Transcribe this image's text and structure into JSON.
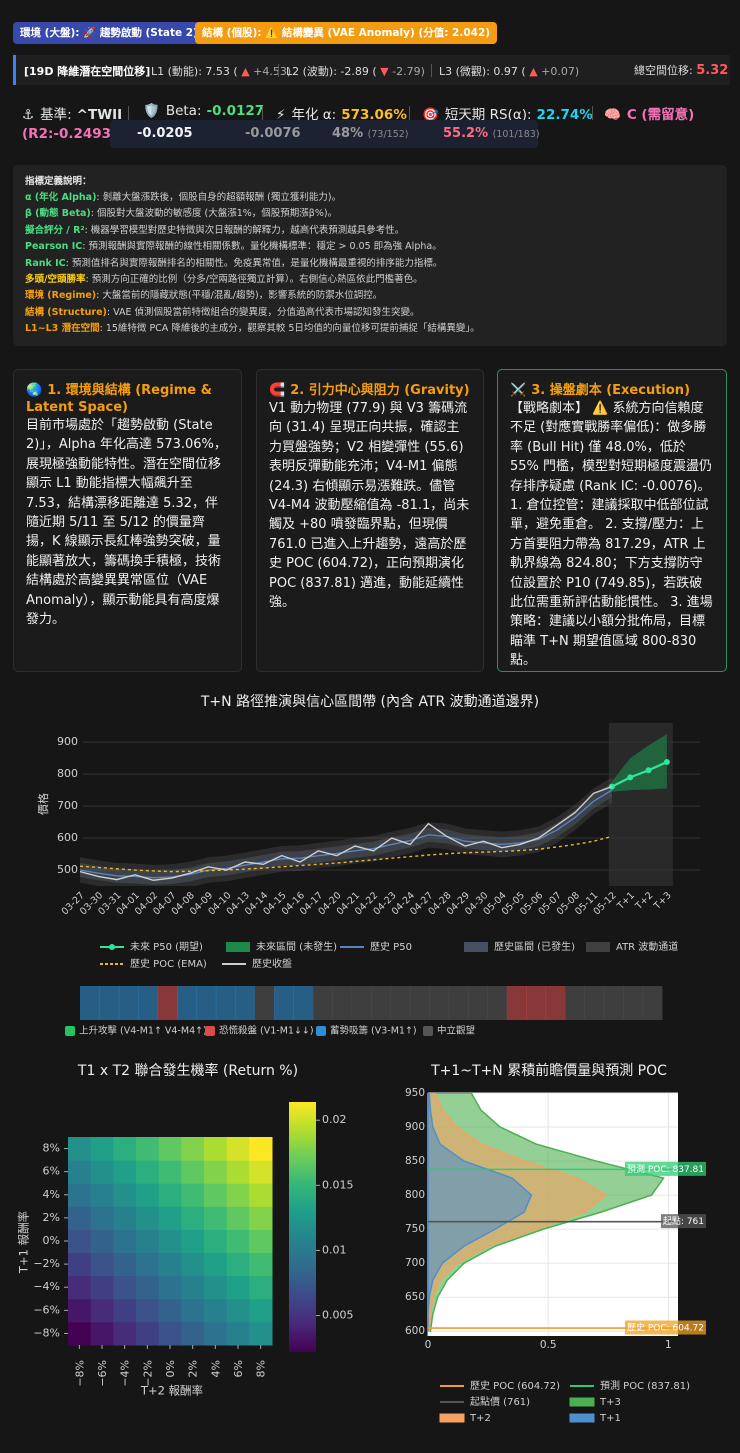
{
  "badges": [
    "環境 (大盤): 🚀 趨勢啟動 (State 2)",
    "結構 (個股): ⚠️ 結構變異 (VAE Anomaly) (分值: 2.042)"
  ],
  "latent": {
    "title": "[19D 降維潛在空間位移]",
    "items": [
      {
        "label": "L1 (動能): 7.53 (",
        "arrow": "▲",
        "delta": "+4.53)"
      },
      {
        "label": "L2 (波動): -2.89 (",
        "arrow": "▼",
        "delta": "-2.79)"
      },
      {
        "label": "L3 (微觀): 0.97 (",
        "arrow": "▲",
        "delta": "+0.07)"
      }
    ],
    "total": {
      "label": "總空間位移:",
      "value": "5.32"
    }
  },
  "metrics": {
    "items": [
      {
        "icon": "⚓",
        "label": "基準:",
        "value": "^TWII",
        "color": "#e5e5e5"
      },
      {
        "icon": "🛡️",
        "label": "Beta:",
        "value": "-0.0127",
        "color": "#4ade80"
      },
      {
        "icon": "⚡",
        "label": "年化 α:",
        "value": "573.06%",
        "color": "#fbbf24"
      },
      {
        "icon": "🎯",
        "label": "短天期 RS(α):",
        "value": "22.74%",
        "color": "#22d3ee"
      },
      {
        "icon": "🧠",
        "value": "C (需留意)",
        "color": "#f472b6"
      }
    ],
    "r2": "(R2:-0.2493)",
    "stats": [
      {
        "main": "-0.0205",
        "color": "#f2f2f2"
      },
      {
        "main": "-0.0076",
        "color": "#9a9a9a"
      },
      {
        "main": "48%",
        "sub": "(73/152)",
        "color": "#9a9a9a"
      },
      {
        "main": "55.2%",
        "sub": "(101/183)",
        "color": "#ff6b81"
      }
    ]
  },
  "definitions": {
    "heading": "指標定義說明：",
    "items": [
      {
        "term": "α (年化 Alpha)",
        "desc": ": 剝離大盤漲跌後，個股自身的超額報酬 (獨立獲利能力)。",
        "color": "#4ade80"
      },
      {
        "term": "β (動態 Beta)",
        "desc": ": 個股對大盤波動的敏感度 (大盤漲1%，個股預期漲β%)。",
        "color": "#4ade80"
      },
      {
        "term": "擬合評分 / R²",
        "desc": ": 機器學習模型對歷史特徵與次日報酬的解釋力，越高代表預測越具參考性。",
        "color": "#4ade80"
      },
      {
        "term": "Pearson IC",
        "desc": ": 預測報酬與實際報酬的線性相關係數。量化機構標準：穩定 > 0.05 即為強 Alpha。",
        "color": "#4ade80"
      },
      {
        "term": "Rank IC",
        "desc": ": 預測值排名與實際報酬排名的相關性。免疫異常值，是量化機構最重視的排序能力指標。",
        "color": "#4ade80"
      },
      {
        "term": "多頭/空頭勝率",
        "desc": ": 預測方向正確的比例（分多/空兩路徑獨立計算）。右側信心熱區依此門檻著色。",
        "color": "#facc15"
      },
      {
        "term": "環境 (Regime)",
        "desc": ": 大盤當前的隱藏狀態(平穩/混亂/趨勢)，影響系統的防禦水位調控。",
        "color": "#f59e0b"
      },
      {
        "term": "結構 (Structure)",
        "desc": ": VAE 偵測個股當前特徵組合的變異度，分值過高代表市場認知發生突變。",
        "color": "#f59e0b"
      },
      {
        "term": "L1~L3 潛在空間",
        "desc": ": 15維特徵 PCA 降維後的主成分，觀察其較 5日均值的向量位移可提前捕捉「結構異變」。",
        "color": "#f59e0b"
      }
    ]
  },
  "cards": [
    {
      "icon": "🌏",
      "title": "1. 環境與結構 (Regime & Latent Space)",
      "body": "目前市場處於「趨勢啟動 (State 2)」，Alpha 年化高達 573.06%，展現極強動能特性。潛在空間位移顯示 L1 動能指標大幅飆升至 7.53，結構漂移距離達 5.32，伴隨近期 5/11 至 5/12 的價量齊揚，K 線顯示長紅棒強勢突破，量能顯著放大，籌碼換手積極，技術結構處於高變異異常區位（VAE Anomaly），顯示動能具有高度爆發力。"
    },
    {
      "icon": "🧲",
      "title": "2. 引力中心與阻力 (Gravity)",
      "body": "V1 動力物理 (77.9) 與 V3 籌碼流向 (31.4) 呈現正向共振，確認主力買盤強勢；V2 相變彈性 (55.6) 表明反彈動能充沛；V4-M1 偏態 (24.3) 右傾顯示易漲難跌。儘管 V4-M4 波動壓縮值為 -81.1，尚未觸及 +80 噴發臨界點，但現價 761.0 已進入上升趨勢，遠高於歷史 POC (604.72)，正向預期演化 POC (837.81) 邁進，動能延續性強。"
    },
    {
      "icon": "⚔️",
      "title": "3. 操盤劇本 (Execution)",
      "body": "【戰略劇本】 ⚠️ 系統方向信賴度不足 (對應實戰勝率偏低)：做多勝率 (Bull Hit) 僅 48.0%，低於 55% 門檻，模型對短期極度震盪仍存排序疑慮 (Rank IC: -0.0076)。 1. 倉位控管：建議採取中低部位試單，避免重倉。 2. 支撐/壓力：上方首要阻力帶為 817.29，ATR 上軌界線為 824.80；下方支撐防守位設置於 P10 (749.85)，若跌破此位需重新評估動能慣性。 3. 進場策略：建議以小額分批佈局，目標瞄準 T+N 期望值區域 800-830 點。"
    }
  ],
  "chart_data": [
    {
      "type": "line",
      "title": "T+N 路徑推演與信心區間帶 (內含 ATR 波動通道邊界)",
      "y_label": "價格",
      "categories": [
        "03-27",
        "03-30",
        "03-31",
        "04-01",
        "04-02",
        "04-07",
        "04-08",
        "04-09",
        "04-10",
        "04-13",
        "04-14",
        "04-15",
        "04-16",
        "04-17",
        "04-20",
        "04-21",
        "04-22",
        "04-23",
        "04-24",
        "04-27",
        "04-28",
        "04-29",
        "04-30",
        "05-04",
        "05-05",
        "05-06",
        "05-07",
        "05-08",
        "05-11",
        "05-12",
        "T+1",
        "T+2",
        "T+3"
      ],
      "ylim": [
        450,
        960
      ],
      "yticks": [
        500,
        600,
        700,
        800,
        900
      ],
      "grid": true,
      "series": [
        {
          "name": "未來 P50 (期望)",
          "kind": "line",
          "markers": true,
          "color": "#2ee59d",
          "values": [
            null,
            null,
            null,
            null,
            null,
            null,
            null,
            null,
            null,
            null,
            null,
            null,
            null,
            null,
            null,
            null,
            null,
            null,
            null,
            null,
            null,
            null,
            null,
            null,
            null,
            null,
            null,
            null,
            null,
            761,
            790,
            812,
            838
          ]
        },
        {
          "name": "未來區間 (未發生)",
          "kind": "band",
          "color": "#1d8a4a",
          "opacity": 0.6,
          "lower": [
            null,
            null,
            null,
            null,
            null,
            null,
            null,
            null,
            null,
            null,
            null,
            null,
            null,
            null,
            null,
            null,
            null,
            null,
            null,
            null,
            null,
            null,
            null,
            null,
            null,
            null,
            null,
            null,
            null,
            745,
            750,
            752,
            755
          ],
          "upper": [
            null,
            null,
            null,
            null,
            null,
            null,
            null,
            null,
            null,
            null,
            null,
            null,
            null,
            null,
            null,
            null,
            null,
            null,
            null,
            null,
            null,
            null,
            null,
            null,
            null,
            null,
            null,
            null,
            null,
            777,
            850,
            890,
            925
          ]
        },
        {
          "name": "歷史 P50",
          "kind": "line",
          "color": "#5b82bd",
          "values": [
            500,
            490,
            482,
            480,
            476,
            478,
            486,
            500,
            505,
            515,
            525,
            535,
            537,
            545,
            552,
            560,
            567,
            580,
            592,
            610,
            605,
            590,
            585,
            580,
            585,
            596,
            625,
            665,
            715,
            750,
            null,
            null,
            null
          ]
        },
        {
          "name": "歷史區間 (已發生)",
          "kind": "band",
          "color": "#5a6b85",
          "opacity": 0.35,
          "lower": [
            478,
            468,
            460,
            458,
            454,
            456,
            464,
            478,
            483,
            493,
            503,
            513,
            515,
            523,
            530,
            538,
            545,
            558,
            570,
            588,
            583,
            568,
            563,
            558,
            563,
            574,
            603,
            643,
            693,
            728,
            null,
            null,
            null
          ],
          "upper": [
            522,
            512,
            504,
            502,
            498,
            500,
            508,
            522,
            527,
            537,
            547,
            557,
            559,
            567,
            574,
            582,
            589,
            602,
            614,
            632,
            627,
            612,
            607,
            602,
            607,
            618,
            647,
            687,
            737,
            772,
            null,
            null,
            null
          ]
        },
        {
          "name": "ATR 波動通道",
          "kind": "band",
          "color": "#777777",
          "opacity": 0.22,
          "lower": [
            460,
            450,
            442,
            440,
            436,
            438,
            446,
            460,
            465,
            475,
            485,
            495,
            497,
            505,
            512,
            520,
            527,
            540,
            552,
            570,
            565,
            550,
            545,
            540,
            545,
            556,
            585,
            625,
            675,
            710,
            null,
            null,
            null
          ],
          "upper": [
            540,
            530,
            522,
            520,
            516,
            518,
            526,
            540,
            545,
            555,
            565,
            575,
            577,
            585,
            592,
            600,
            607,
            620,
            632,
            650,
            645,
            630,
            625,
            620,
            625,
            636,
            665,
            705,
            755,
            790,
            null,
            null,
            null
          ]
        },
        {
          "name": "歷史 POC (EMA)",
          "kind": "line",
          "dash": true,
          "color": "#f0b429",
          "values": [
            512,
            508,
            504,
            500,
            497,
            495,
            496,
            498,
            500,
            503,
            506,
            510,
            514,
            518,
            522,
            527,
            532,
            537,
            542,
            547,
            551,
            554,
            556,
            558,
            561,
            565,
            572,
            580,
            590,
            605,
            null,
            null,
            null
          ]
        },
        {
          "name": "歷史收盤",
          "kind": "line",
          "color": "#cfcfcf",
          "values": [
            495,
            480,
            470,
            485,
            468,
            475,
            490,
            510,
            500,
            525,
            518,
            545,
            525,
            560,
            545,
            575,
            560,
            600,
            580,
            645,
            605,
            575,
            590,
            570,
            580,
            600,
            640,
            680,
            740,
            761,
            null,
            null,
            null
          ]
        }
      ],
      "regimes": {
        "names": [
          "上升攻擊 (V4-M1↑ V4-M4↑)",
          "恐慌殺盤 (V1-M1↓↓)",
          "蓄勢吸籌 (V3-M1↑)",
          "中立觀望"
        ],
        "colors": [
          "#22c55e",
          "#dc4a4a",
          "#2a8fd8",
          "#555555"
        ],
        "sequence": [
          2,
          2,
          2,
          2,
          1,
          2,
          2,
          2,
          2,
          3,
          2,
          2,
          3,
          3,
          3,
          3,
          3,
          3,
          3,
          3,
          3,
          3,
          1,
          1,
          1,
          3,
          3,
          3,
          3,
          3
        ]
      }
    },
    {
      "type": "heatmap",
      "title": "T1 x T2 聯合發生機率 (Return %)",
      "x_label": "T+2 報酬率",
      "y_label": "T+1 報酬率",
      "x": [
        -8,
        -6,
        -4,
        -2,
        0,
        2,
        4,
        6,
        8
      ],
      "y": [
        -8,
        -6,
        -4,
        -2,
        0,
        2,
        4,
        6,
        8
      ],
      "z": [
        [
          0.0022,
          0.0034,
          0.0046,
          0.0058,
          0.007,
          0.0082,
          0.0094,
          0.0106,
          0.0118
        ],
        [
          0.0034,
          0.0046,
          0.0058,
          0.007,
          0.0082,
          0.0094,
          0.0106,
          0.0118,
          0.013
        ],
        [
          0.0046,
          0.0058,
          0.007,
          0.0082,
          0.0094,
          0.0106,
          0.0118,
          0.013,
          0.0142
        ],
        [
          0.0058,
          0.007,
          0.0082,
          0.0094,
          0.0106,
          0.0118,
          0.013,
          0.0142,
          0.0154
        ],
        [
          0.007,
          0.0082,
          0.0094,
          0.0106,
          0.0118,
          0.013,
          0.0142,
          0.0154,
          0.0166
        ],
        [
          0.0082,
          0.0094,
          0.0106,
          0.0118,
          0.013,
          0.0142,
          0.0154,
          0.0166,
          0.0178
        ],
        [
          0.0094,
          0.0106,
          0.0118,
          0.013,
          0.0142,
          0.0154,
          0.0166,
          0.0178,
          0.019
        ],
        [
          0.0106,
          0.0118,
          0.013,
          0.0142,
          0.0154,
          0.0166,
          0.0178,
          0.019,
          0.0202
        ],
        [
          0.0118,
          0.013,
          0.0142,
          0.0154,
          0.0166,
          0.0178,
          0.019,
          0.0202,
          0.0214
        ]
      ],
      "xlim": [
        -9,
        9
      ],
      "ylim": [
        -9,
        9
      ],
      "xticks": [
        {
          "value": -8,
          "label": "−8%"
        },
        {
          "value": -6,
          "label": "−6%"
        },
        {
          "value": -4,
          "label": "−4%"
        },
        {
          "value": -2,
          "label": "−2%"
        },
        {
          "value": 0,
          "label": "0%"
        },
        {
          "value": 2,
          "label": "2%"
        },
        {
          "value": 4,
          "label": "4%"
        },
        {
          "value": 6,
          "label": "6%"
        },
        {
          "value": 8,
          "label": "8%"
        }
      ],
      "yticks": [
        {
          "value": -8,
          "label": "−8%"
        },
        {
          "value": -6,
          "label": "−6%"
        },
        {
          "value": -4,
          "label": "−4%"
        },
        {
          "value": -2,
          "label": "−2%"
        },
        {
          "value": 0,
          "label": "0%"
        },
        {
          "value": 2,
          "label": "2%"
        },
        {
          "value": 4,
          "label": "4%"
        },
        {
          "value": 6,
          "label": "6%"
        },
        {
          "value": 8,
          "label": "8%"
        }
      ],
      "colorbar": {
        "lim": [
          0.0022,
          0.0214
        ],
        "ticks": [
          0.005,
          0.01,
          0.015,
          0.02
        ]
      }
    },
    {
      "type": "area",
      "title": "T+1~T+N 累積前瞻價量與預測 POC",
      "y": [
        600,
        625,
        650,
        675,
        700,
        725,
        750,
        775,
        800,
        825,
        850,
        875,
        900,
        925,
        950
      ],
      "xlim": [
        0,
        1.04
      ],
      "xticks": [
        0,
        0.5,
        1
      ],
      "ylim": [
        593,
        950
      ],
      "yticks": [
        600,
        650,
        700,
        750,
        800,
        850,
        900,
        950
      ],
      "grid": true,
      "series": [
        {
          "name": "T+3",
          "color": "#4caf50",
          "values": [
            0.01,
            0.02,
            0.04,
            0.08,
            0.15,
            0.28,
            0.48,
            0.72,
            0.93,
            0.98,
            0.7,
            0.45,
            0.3,
            0.22,
            0.18
          ]
        },
        {
          "name": "T+2",
          "color": "#f4a261",
          "values": [
            0.005,
            0.01,
            0.02,
            0.05,
            0.12,
            0.25,
            0.45,
            0.65,
            0.74,
            0.62,
            0.4,
            0.22,
            0.12,
            0.06,
            0.03
          ]
        },
        {
          "name": "T+1",
          "color": "#4f8fcc",
          "values": [
            0,
            0,
            0.005,
            0.02,
            0.06,
            0.15,
            0.28,
            0.4,
            0.43,
            0.35,
            0.15,
            0.05,
            0.02,
            0.01,
            0.005
          ]
        }
      ],
      "lines": [
        {
          "name": "歷史 POC (604.72)",
          "label": "歷史 POC: 604.72",
          "value": 604.72,
          "color": "#f0a020"
        },
        {
          "name": "預測 POC (837.81)",
          "label": "預測 POC: 837.81",
          "value": 837.81,
          "color": "#2ecc71"
        },
        {
          "name": "起點價 (761)",
          "label": "起點: 761",
          "value": 761,
          "color": "#555555"
        }
      ]
    }
  ]
}
